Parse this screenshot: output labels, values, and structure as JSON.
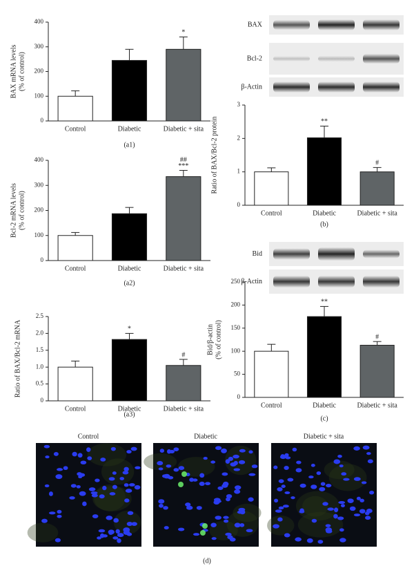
{
  "chart_data": [
    {
      "type": "bar",
      "panel_label": "(a1)",
      "ylabel": [
        "BAX mRNA levels",
        "(% of control)"
      ],
      "categories": [
        "Control",
        "Diabetic",
        "Diabetic + sita"
      ],
      "values": [
        100,
        245,
        290
      ],
      "errors": [
        22,
        45,
        50
      ],
      "colors": [
        "#ffffff",
        "#000000",
        "#5f6466"
      ],
      "annotations": [
        [],
        [],
        [
          "*"
        ]
      ],
      "ylim": [
        0,
        400
      ],
      "yticks": [
        0,
        100,
        200,
        300,
        400
      ]
    },
    {
      "type": "bar",
      "panel_label": "(a2)",
      "ylabel": [
        "Bcl-2 mRNA levels",
        "(% of control)"
      ],
      "categories": [
        "Control",
        "Diabetic",
        "Diabetic + sita"
      ],
      "values": [
        100,
        187,
        335
      ],
      "errors": [
        12,
        25,
        25
      ],
      "colors": [
        "#ffffff",
        "#000000",
        "#5f6466"
      ],
      "annotations": [
        [],
        [],
        [
          "##",
          "***"
        ]
      ],
      "ylim": [
        0,
        400
      ],
      "yticks": [
        0,
        100,
        200,
        300,
        400
      ]
    },
    {
      "type": "bar",
      "panel_label": "(a3)",
      "ylabel": [
        "Ratio of BAX/Bcl-2 mRNA"
      ],
      "categories": [
        "Control",
        "Diabetic",
        "Diabetic + sita"
      ],
      "values": [
        1.0,
        1.82,
        1.05
      ],
      "errors": [
        0.18,
        0.18,
        0.18
      ],
      "colors": [
        "#ffffff",
        "#000000",
        "#5f6466"
      ],
      "annotations": [
        [],
        [
          "*"
        ],
        [
          "#"
        ]
      ],
      "ylim": [
        0,
        2.5
      ],
      "yticks": [
        0,
        0.5,
        {
          "value": 1,
          "label": "1.0"
        },
        1.5,
        {
          "value": 2,
          "label": "2.0"
        },
        2.5
      ]
    },
    {
      "type": "bar",
      "panel_label": "(b)",
      "ylabel": [
        "Ratio of BAX/Bcl-2 protein"
      ],
      "categories": [
        "Control",
        "Diabetic",
        "Diabetic + sita"
      ],
      "values": [
        1.0,
        2.02,
        1.0
      ],
      "errors": [
        0.12,
        0.35,
        0.13
      ],
      "colors": [
        "#ffffff",
        "#000000",
        "#5f6466"
      ],
      "annotations": [
        [],
        [
          "**"
        ],
        [
          "#"
        ]
      ],
      "ylim": [
        0,
        3
      ],
      "yticks": [
        0,
        1,
        2,
        3
      ]
    },
    {
      "type": "bar",
      "panel_label": "(c)",
      "ylabel": [
        "Bid/β-actin",
        "(% of control)"
      ],
      "categories": [
        "Control",
        "Diabetic",
        "Diabetic + sita"
      ],
      "values": [
        100,
        175,
        113
      ],
      "errors": [
        15,
        22,
        8
      ],
      "colors": [
        "#ffffff",
        "#000000",
        "#5f6466"
      ],
      "annotations": [
        [],
        [
          "**"
        ],
        [
          "#"
        ]
      ],
      "ylim": [
        0,
        250
      ],
      "yticks": [
        0,
        50,
        100,
        150,
        200,
        250
      ]
    }
  ],
  "blots": [
    {
      "labels": [
        "BAX",
        "Bcl-2",
        "β-Actin"
      ]
    },
    {
      "labels": [
        "Bid",
        "β-Actin"
      ]
    }
  ],
  "micrographs": {
    "titles": [
      "Control",
      "Diabetic",
      "Diabetic + sita"
    ],
    "panel_label": "(d)"
  }
}
